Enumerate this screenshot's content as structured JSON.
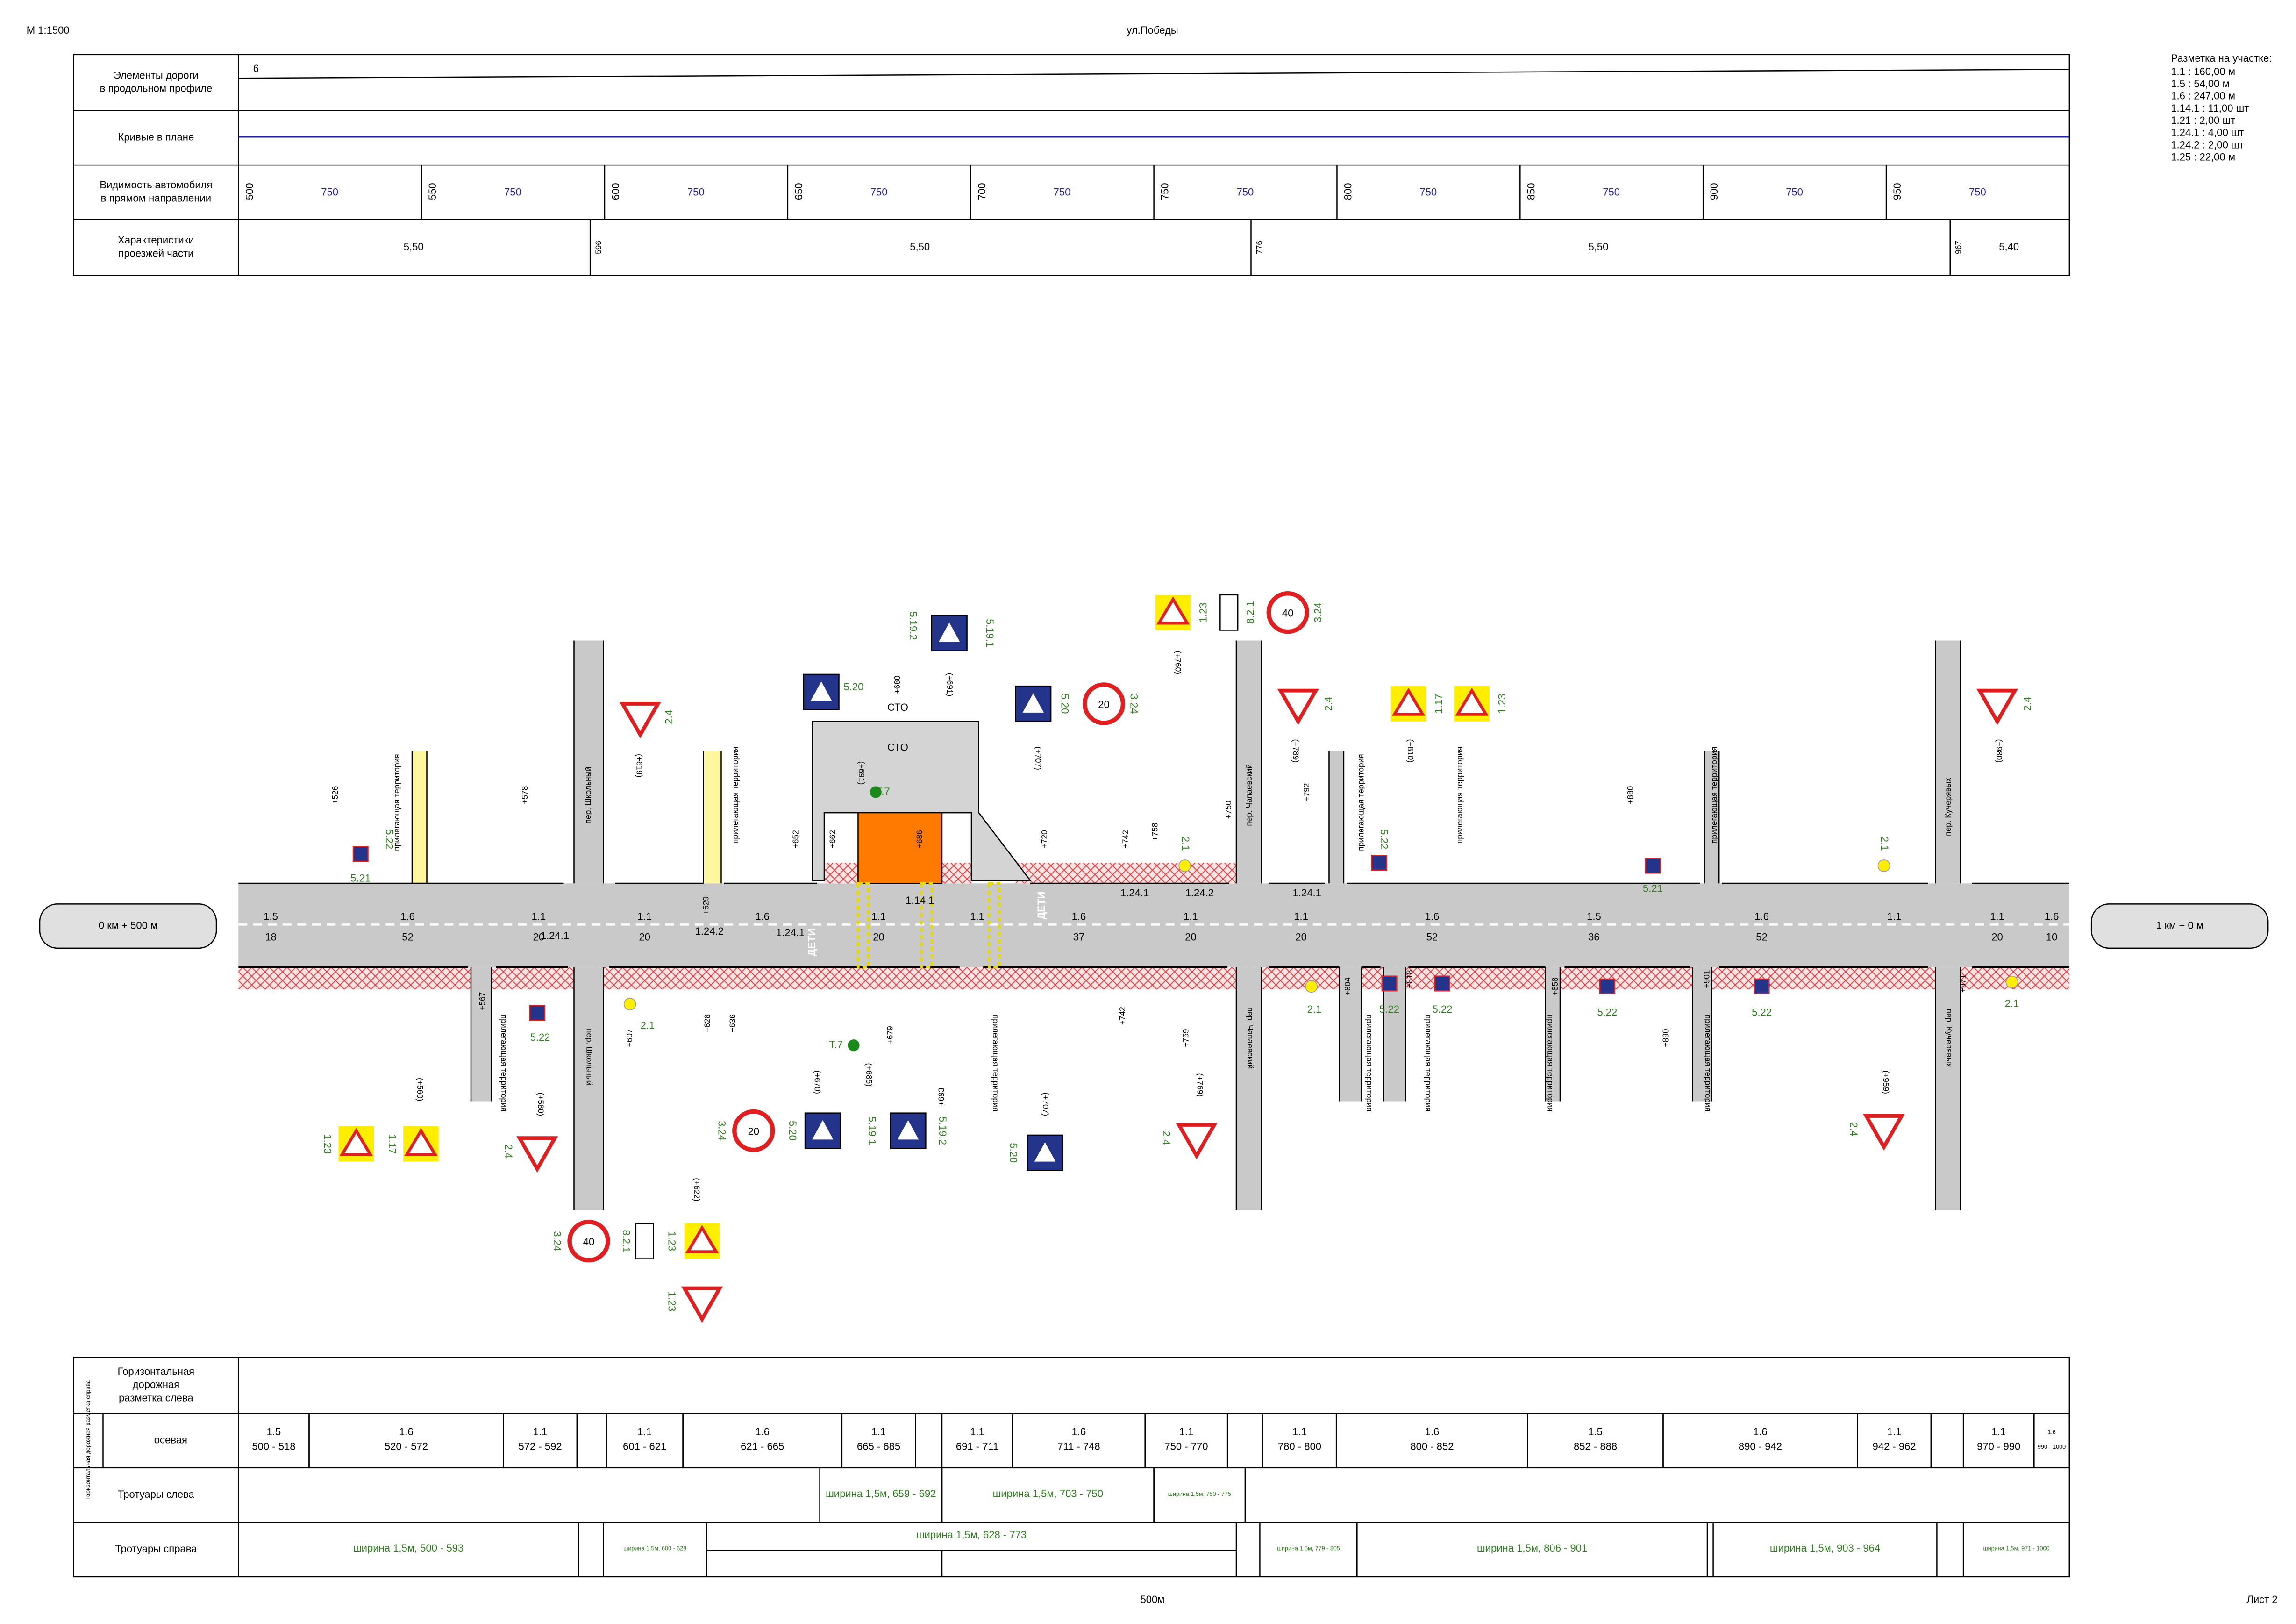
{
  "header": {
    "scale": "М 1:1500",
    "title": "ул.Победы",
    "footer": "500м",
    "sheet": "Лист 2"
  },
  "legend": {
    "title": "Разметка на участке:",
    "items": [
      "1.1 : 160,00 м",
      "1.5 : 54,00 м",
      "1.6 : 247,00 м",
      "1.14.1 : 11,00 шт",
      "1.21 : 2,00 шт",
      "1.24.1 : 4,00 шт",
      "1.24.2 : 2,00 шт",
      "1.25 : 22,00 м"
    ]
  },
  "top_table": {
    "row_labels": [
      [
        "Элементы дороги",
        "в продольном профиле"
      ],
      [
        "Кривые в плане"
      ],
      [
        "Видимость автомобиля",
        "в прямом направлении"
      ],
      [
        "Характеристики",
        "проезжей части"
      ]
    ],
    "profile_value": 6,
    "visibility": {
      "pickets": [
        500,
        550,
        600,
        650,
        700,
        750,
        800,
        850,
        900,
        950
      ],
      "distances": [
        750,
        750,
        750,
        750,
        750,
        750,
        750,
        750,
        750,
        750
      ]
    },
    "carriageway": {
      "pickets": [
        596,
        776,
        967
      ],
      "widths": [
        "5,50",
        "5,50",
        "5,50",
        "5,40"
      ]
    }
  },
  "plan": {
    "start": "0 км + 500 м",
    "end": "1 км + 0 м",
    "streets": [
      "пер. Школьный",
      "пер. Школьный",
      "пер. Чапаевский",
      "пер. Чапаевский",
      "пер. Кучерявых",
      "пер. Кучерявых"
    ],
    "adjacent": [
      "прилегающая территория",
      "прилегающая территория",
      "прилегающая территория",
      "прилегающая территория",
      "прилегающая территория",
      "прилегающая территория",
      "прилегающая территория",
      "прилегающая территория",
      "прилегающая территория",
      "прилегающая территория",
      "прилегающая территория"
    ],
    "objects": [
      "СТО",
      "СТО",
      "Т.7",
      "Т.7",
      "ДЕТИ",
      "ДЕТИ"
    ],
    "chainages": [
      "+526",
      "+578",
      "(+619)",
      "+629",
      "+652",
      "+662",
      "(+691)",
      "+680",
      "(+691)",
      "+686",
      "(+707)",
      "+720",
      "+742",
      "+758",
      "(+760)",
      "+750",
      "(+789)",
      "+792",
      "(+810)",
      "+880",
      "(+980)",
      "(+560)",
      "+567",
      "(+580)",
      "+607",
      "(+622)",
      "+628",
      "+636",
      "(+670)",
      "+679",
      "(+685)",
      "+693",
      "(+707)",
      "+742",
      "+759",
      "(+769)",
      "+804",
      "+818",
      "+858",
      "+890",
      "+901",
      "(+959)",
      "+971"
    ],
    "markings": [
      "1.5",
      "1.6",
      "1.1",
      "1.24.1",
      "1.1",
      "1.24.2",
      "1.6",
      "1.24.1",
      "1.1",
      "1.14.1",
      "1.1",
      "1.6",
      "1.24.1",
      "1.1",
      "1.24.2",
      "1.1",
      "1.24.1",
      "1.6",
      "1.5",
      "1.6",
      "1.1",
      "1.1",
      "1.6"
    ],
    "lengths": [
      18,
      52,
      20,
      20,
      20,
      37,
      20,
      20,
      52,
      36,
      52,
      20,
      10
    ],
    "sign_codes": [
      "2.4",
      "5.20",
      "5.19.2",
      "5.19.1",
      "5.20",
      "3.24",
      "1.23",
      "8.2.1",
      "3.24",
      "2.4",
      "1.17",
      "1.23",
      "2.4",
      "1.23",
      "1.17",
      "2.4",
      "3.24",
      "8.2.1",
      "1.23",
      "1.23",
      "3.24",
      "5.20",
      "5.19.1",
      "5.19.2",
      "5.20",
      "2.4",
      "2.4",
      "5.21",
      "5.22",
      "5.22",
      "5.22",
      "5.21",
      "5.22",
      "5.22",
      "5.22",
      "5.22",
      "2.1",
      "2.1",
      "2.1",
      "2.1",
      "2.1"
    ],
    "speed_limits": [
      20,
      40,
      40,
      20
    ]
  },
  "bottom_table": {
    "row_labels": [
      [
        "Горизонтальная",
        "дорожная",
        "разметка слева"
      ],
      [
        "осевая"
      ],
      [
        "Тротуары слева"
      ],
      [
        "Тротуары справа"
      ]
    ],
    "side_note": "Горизонтальная дорожная разметка справа",
    "axial": [
      {
        "code": "1.5",
        "range": "500 - 518"
      },
      {
        "code": "1.6",
        "range": "520 - 572"
      },
      {
        "code": "1.1",
        "range": "572 - 592"
      },
      {
        "code": "1.1",
        "range": "601 - 621"
      },
      {
        "code": "1.6",
        "range": "621 - 665"
      },
      {
        "code": "1.1",
        "range": "665 - 685"
      },
      {
        "code": "1.1",
        "range": "691 - 711"
      },
      {
        "code": "1.6",
        "range": "711 - 748"
      },
      {
        "code": "1.1",
        "range": "750 - 770"
      },
      {
        "code": "1.1",
        "range": "780 - 800"
      },
      {
        "code": "1.6",
        "range": "800 - 852"
      },
      {
        "code": "1.5",
        "range": "852 - 888"
      },
      {
        "code": "1.6",
        "range": "890 - 942"
      },
      {
        "code": "1.1",
        "range": "942 - 962"
      },
      {
        "code": "1.1",
        "range": "970 - 990"
      },
      {
        "code": "1.6",
        "range": "990 - 1000"
      }
    ],
    "sidewalks_left": [
      "ширина 1,5м, 659 - 692",
      "ширина 1,5м, 703 - 750",
      "ширина 1,5м, 750 - 775"
    ],
    "sidewalks_right": [
      "ширина 1,5м, 500 - 593",
      "ширина 1,5м, 600 - 628",
      "ширина 1,5м, 628 - 773",
      "ширина 1,5м, 779 - 805",
      "ширина 1,5м, 806 - 901",
      "ширина 1,5м, 903 - 964",
      "ширина 1,5м, 971 - 1000"
    ]
  }
}
